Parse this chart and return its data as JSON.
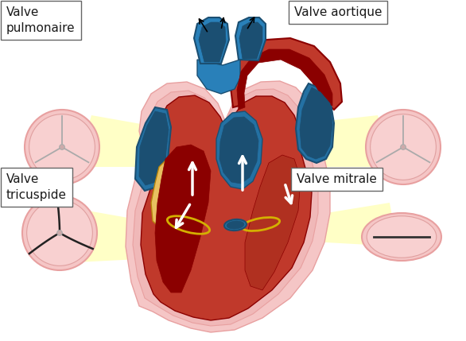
{
  "title": "",
  "background_color": "#ffffff",
  "labels": {
    "valve_pulmonaire": "Valve\npulmonaire",
    "valve_aortique": "Valve aortique",
    "valve_tricuspide": "Valve\ntricuspide",
    "valve_mitrale": "Valve mitrale"
  },
  "colors": {
    "heart_red": "#C0392B",
    "heart_bright_red": "#D93025",
    "heart_dark_red": "#8B0000",
    "heart_light_pink": "#F5C6C6",
    "heart_medium_pink": "#E8A0A0",
    "heart_wall_pink": "#F0B8B8",
    "blue_dark": "#1B4F72",
    "blue_mid": "#2471A3",
    "blue_light": "#5DADE2",
    "blue_vessel": "#2980B9",
    "yellow_beam": "#FFFFA0",
    "yellow_gold": "#E8C060",
    "green_yellow": "#B8C840",
    "valve_circle_outer": "#F5C6C6",
    "valve_circle_inner": "#F1948A",
    "valve_circle_rim": "#E8A0A0",
    "valve_line_dark": "#333333",
    "valve_line_red": "#922B21",
    "white": "#FFFFFF",
    "black": "#000000",
    "text_color": "#1a1a1a",
    "box_edge": "#555555",
    "teal": "#17A589",
    "orange_gold": "#CA8A04"
  },
  "font_size_label": 11,
  "figsize": [
    5.86,
    4.29
  ],
  "dpi": 100
}
